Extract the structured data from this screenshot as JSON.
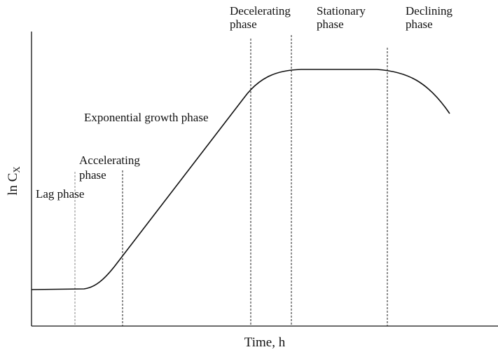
{
  "title": null,
  "phases": [
    {
      "lines": [
        "Lag phase"
      ]
    },
    {
      "lines": [
        "Accelerating",
        "phase"
      ]
    },
    {
      "lines": [
        "Exponential growth phase"
      ]
    },
    {
      "lines": [
        "Decelerating",
        "phase"
      ]
    },
    {
      "lines": [
        "Stationary",
        "phase"
      ]
    },
    {
      "lines": [
        "Declining",
        "phase"
      ]
    }
  ],
  "y_axis": {
    "text": "ln C",
    "subscript": "X"
  },
  "x_axis": {
    "text": "Time, h"
  }
}
